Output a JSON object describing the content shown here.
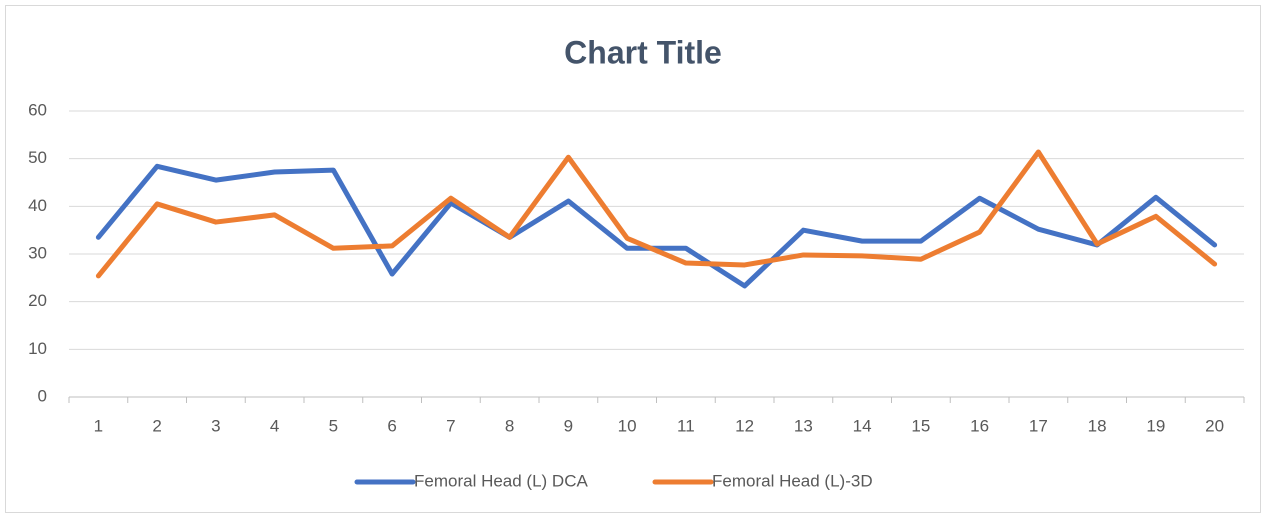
{
  "chart_data": {
    "type": "line",
    "title": "Chart Title",
    "categories": [
      "1",
      "2",
      "3",
      "4",
      "5",
      "6",
      "7",
      "8",
      "9",
      "10",
      "11",
      "12",
      "13",
      "14",
      "15",
      "16",
      "17",
      "18",
      "19",
      "20"
    ],
    "series": [
      {
        "name": "Femoral Head (L) DCA",
        "color": "#4472C4",
        "values": [
          33.5,
          48.4,
          45.5,
          47.2,
          47.6,
          25.8,
          40.7,
          33.5,
          41.1,
          31.2,
          31.2,
          23.3,
          35,
          32.7,
          32.7,
          41.7,
          35.2,
          31.9,
          41.9,
          31.9
        ]
      },
      {
        "name": "Femoral Head (L)-3D",
        "color": "#ED7D31",
        "values": [
          25.4,
          40.5,
          36.7,
          38.2,
          31.2,
          31.7,
          41.7,
          33.5,
          50.3,
          33.3,
          28.1,
          27.7,
          29.8,
          29.6,
          28.9,
          34.6,
          51.4,
          32.1,
          37.9,
          27.9
        ]
      }
    ],
    "ylim": [
      0,
      60
    ],
    "yticks": [
      0,
      10,
      20,
      30,
      40,
      50,
      60
    ],
    "grid": true,
    "legend": "bottom"
  }
}
